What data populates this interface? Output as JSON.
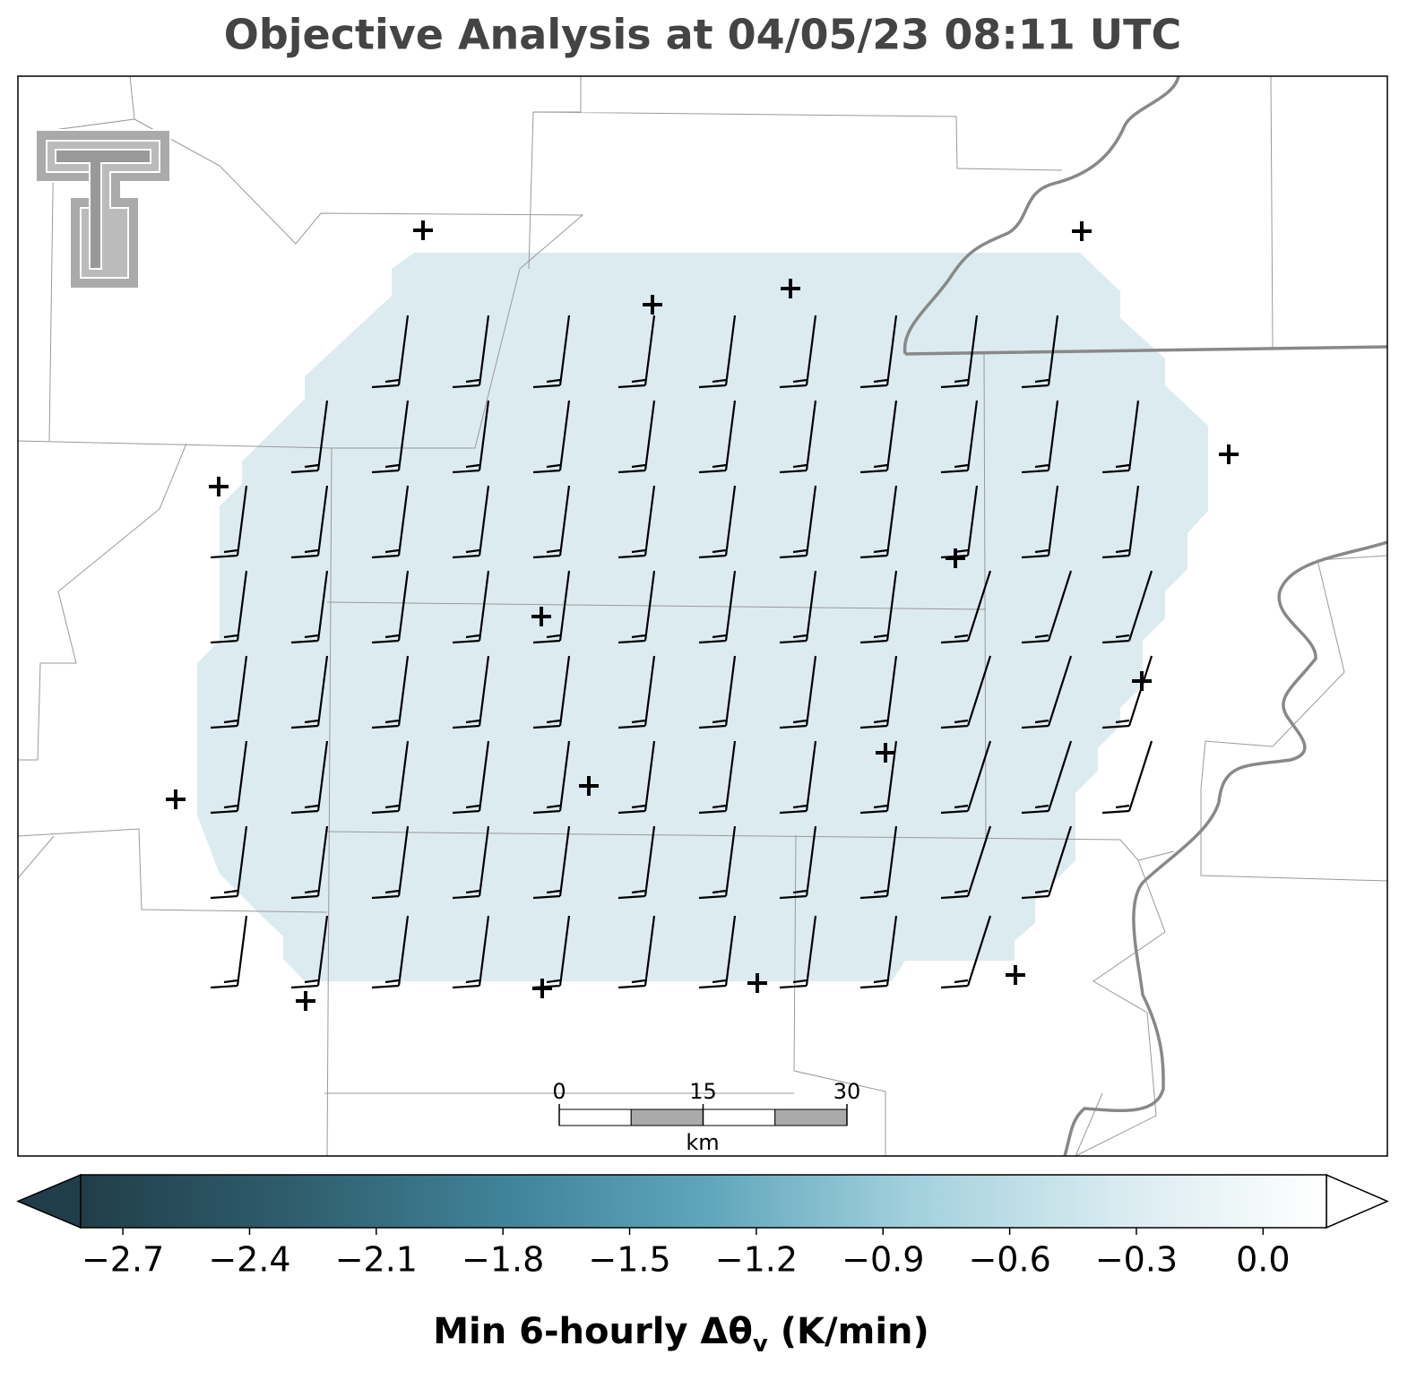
{
  "title": "Objective Analysis at 04/05/23 08:11 UTC",
  "colorbar": {
    "lim": [
      -2.8,
      0.15
    ],
    "ticks": [
      {
        "value": -2.7,
        "label": "−2.7"
      },
      {
        "value": -2.4,
        "label": "−2.4"
      },
      {
        "value": -2.1,
        "label": "−2.1"
      },
      {
        "value": -1.8,
        "label": "−1.8"
      },
      {
        "value": -1.5,
        "label": "−1.5"
      },
      {
        "value": -1.2,
        "label": "−1.2"
      },
      {
        "value": -0.9,
        "label": "−0.9"
      },
      {
        "value": -0.6,
        "label": "−0.6"
      },
      {
        "value": -0.3,
        "label": "−0.3"
      },
      {
        "value": 0,
        "label": "0.0"
      }
    ],
    "colors": [
      "#203e4a",
      "#2f5d6c",
      "#3f8197",
      "#5ea5ba",
      "#a2d0dd",
      "#d8ebf0",
      "#ffffff"
    ],
    "label": {
      "main": "Min 6-hourly Δθ",
      "subscript": "v",
      "unit": "(K/min)"
    }
  },
  "scale_bar": {
    "ticks": [
      0,
      15,
      30
    ],
    "unit": "km"
  }
}
